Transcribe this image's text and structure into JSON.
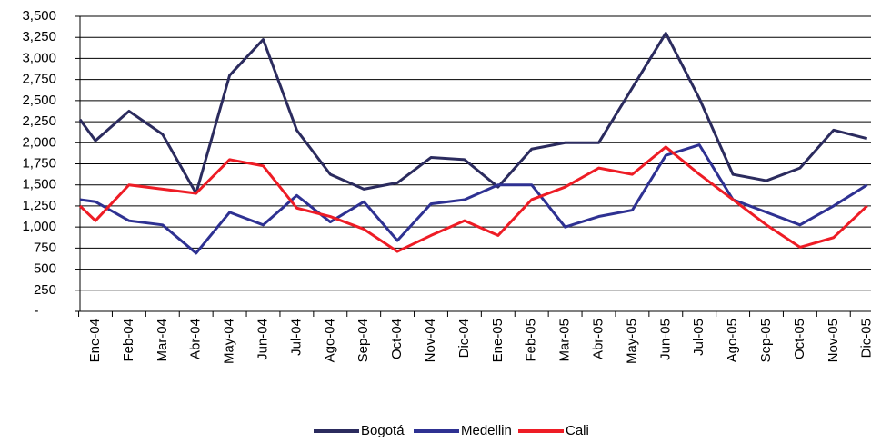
{
  "chart_data": {
    "type": "line",
    "categories": [
      null,
      "Ene-04",
      "Feb-04",
      "Mar-04",
      "Abr-04",
      "May-04",
      "Jun-04",
      "Jul-04",
      "Ago-04",
      "Sep-04",
      "Oct-04",
      "Nov-04",
      "Dic-04",
      "Ene-05",
      "Feb-05",
      "Mar-05",
      "Abr-05",
      "May-05",
      "Jun-05",
      "Jul-05",
      "Ago-05",
      "Sep-05",
      "Oct-05",
      "Nov-05",
      "Dic-05"
    ],
    "series": [
      {
        "name": "Bogotá",
        "color": "#2b2b5e",
        "values": [
          2275,
          2025,
          2375,
          2100,
          1400,
          2800,
          3225,
          2150,
          1625,
          1450,
          1525,
          1825,
          1800,
          1475,
          1925,
          2000,
          2000,
          2650,
          3300,
          2525,
          1625,
          1550,
          1700,
          2150,
          2050
        ]
      },
      {
        "name": "Medellin",
        "color": "#2e3192",
        "values": [
          1325,
          1300,
          1075,
          1025,
          690,
          1175,
          1025,
          1375,
          1060,
          1300,
          840,
          1275,
          1325,
          1500,
          1500,
          1000,
          1125,
          1200,
          1850,
          1975,
          1325,
          1175,
          1025,
          1250,
          1500
        ]
      },
      {
        "name": "Cali",
        "color": "#ee1c25",
        "values": [
          1250,
          1075,
          1500,
          1450,
          1400,
          1800,
          1725,
          1225,
          1125,
          975,
          710,
          900,
          1075,
          900,
          1325,
          1475,
          1700,
          1625,
          1950,
          1625,
          1325,
          1025,
          760,
          875,
          1250
        ]
      }
    ],
    "ylim": [
      0,
      3500
    ],
    "yticks": [
      {
        "value": 0,
        "label": "-"
      },
      250,
      500,
      750,
      {
        "value": 1000,
        "label": "1,000"
      },
      {
        "value": 1250,
        "label": "1,250"
      },
      {
        "value": 1500,
        "label": "1,500"
      },
      {
        "value": 1750,
        "label": "1,750"
      },
      {
        "value": 2000,
        "label": "2,000"
      },
      {
        "value": 2250,
        "label": "2,250"
      },
      {
        "value": 2500,
        "label": "2,500"
      },
      {
        "value": 2750,
        "label": "2,750"
      },
      {
        "value": 3000,
        "label": "3,000"
      },
      {
        "value": 3250,
        "label": "3,250"
      },
      {
        "value": 3500,
        "label": "3,500"
      }
    ],
    "grid": true,
    "legend": "bottom"
  }
}
